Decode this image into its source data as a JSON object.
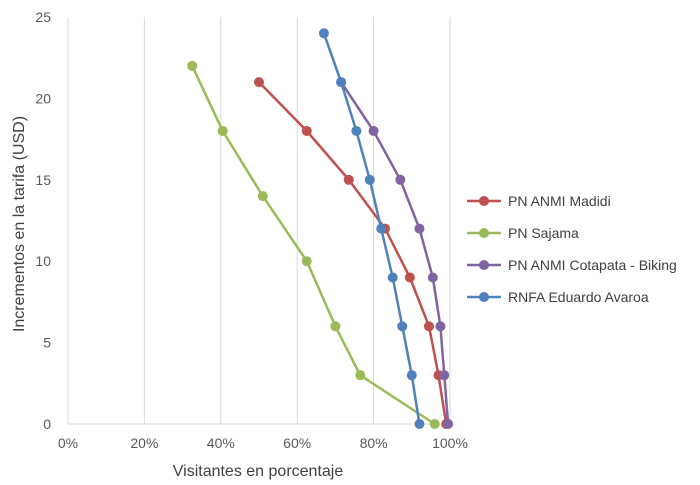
{
  "chart_data": {
    "type": "scatter",
    "title": "",
    "xlabel": "Visitantes en porcentaje",
    "ylabel": "Incrementos en la tarifa (USD)",
    "xlim": [
      0,
      100
    ],
    "ylim": [
      0,
      25
    ],
    "x_ticks": [
      "0%",
      "20%",
      "40%",
      "60%",
      "80%",
      "100%"
    ],
    "y_ticks": [
      "0",
      "5",
      "10",
      "15",
      "20",
      "25"
    ],
    "x_tick_values": [
      0,
      20,
      40,
      60,
      80,
      100
    ],
    "y_tick_values": [
      0,
      5,
      10,
      15,
      20,
      25
    ],
    "grid": "vertical",
    "legend_position": "right",
    "series": [
      {
        "name": "PN ANMI Madidi",
        "color": "#c0504d",
        "points": [
          [
            50,
            21
          ],
          [
            62.5,
            18
          ],
          [
            73.5,
            15
          ],
          [
            83,
            12
          ],
          [
            89.5,
            9
          ],
          [
            94.5,
            6
          ],
          [
            97,
            3
          ],
          [
            99,
            0
          ]
        ]
      },
      {
        "name": "PN Sajama",
        "color": "#9bbb59",
        "points": [
          [
            32.5,
            22
          ],
          [
            40.5,
            18
          ],
          [
            51,
            14
          ],
          [
            62.5,
            10
          ],
          [
            70,
            6
          ],
          [
            76.5,
            3
          ],
          [
            96,
            0
          ]
        ]
      },
      {
        "name": "PN ANMI Cotapata - Biking",
        "color": "#8064a2",
        "points": [
          [
            71.5,
            21
          ],
          [
            80,
            18
          ],
          [
            87,
            15
          ],
          [
            92,
            12
          ],
          [
            95.5,
            9
          ],
          [
            97.5,
            6
          ],
          [
            98.5,
            3
          ],
          [
            99.5,
            0
          ]
        ]
      },
      {
        "name": "RNFA Eduardo Avaroa",
        "color": "#4f81bd",
        "points": [
          [
            67,
            24
          ],
          [
            71.5,
            21
          ],
          [
            75.5,
            18
          ],
          [
            79,
            15
          ],
          [
            82,
            12
          ],
          [
            85,
            9
          ],
          [
            87.5,
            6
          ],
          [
            90,
            3
          ],
          [
            92,
            0
          ]
        ]
      }
    ]
  }
}
